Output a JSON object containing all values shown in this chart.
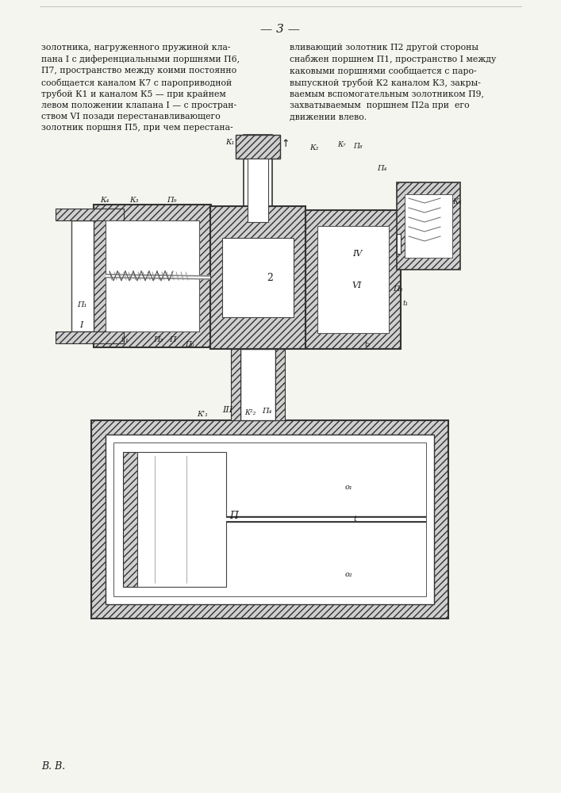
{
  "page_number": "3",
  "background_color": "#f5f5f0",
  "text_color": "#1a1a1a",
  "left_column_text": [
    "золотника, нагруженного пружиной кла-",
    "пана I с диференциальными поршнями Π6,",
    "Π7, пространство между коими постоянно",
    "сообщается каналом К7 с пароприводной",
    "трубой К1 и каналом К5 — при крайнем",
    "левом положении клапана I — с простран-",
    "ством VI позади перестанавливающего",
    "золотник поршня Π5, при чем перестана-"
  ],
  "right_column_text": [
    "вливающий золотник Π2 другой стороны",
    "снабжен поршнем Π1, пространство I между",
    "каковыми поршнями сообщается с паро-",
    "выпускной трубой К2 каналом К3, закры-",
    "ваемым вспомогательным золотником Π9,",
    "захватываемым  поршнем Π2а при  его",
    "движении влево."
  ],
  "footer_text": "В. В.",
  "line_color": "#333333",
  "hatch_color": "#666666",
  "diagram_bg": "#e8e8e8"
}
